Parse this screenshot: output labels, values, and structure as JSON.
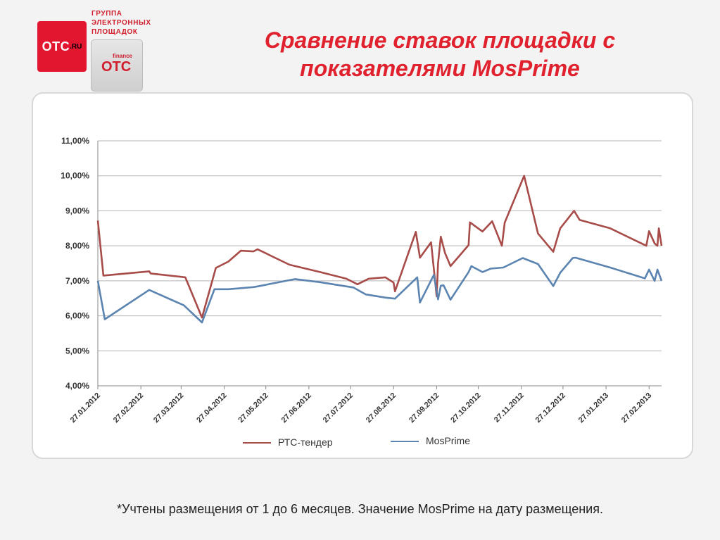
{
  "logo": {
    "brand": "OTC",
    "brand_suffix": ".RU",
    "group_lines": [
      "ГРУППА",
      "ЭЛЕКТРОННЫХ",
      "ПЛОЩАДОК"
    ],
    "finance_label": "finance",
    "finance_brand": "OTC"
  },
  "title": "Сравнение ставок площадки с показателями MosPrime",
  "footnote": "*Учтены размещения от 1 до 6 месяцев. Значение MosPrime на дату размещения.",
  "colors": {
    "accent": "#e0212e",
    "series_rts": "#a84c4a",
    "series_mosprime": "#5b84b1"
  },
  "chart_data": {
    "type": "line",
    "x_ticks": [
      "27.01.2012",
      "27.02.2012",
      "27.03.2012",
      "27.04.2012",
      "27.05.2012",
      "27.06.2012",
      "27.07.2012",
      "27.08.2012",
      "27.09.2012",
      "27.10.2012",
      "27.11.2012",
      "27.12.2012",
      "27.01.2013",
      "27.02.2013"
    ],
    "y_ticks": [
      "4,00%",
      "5,00%",
      "6,00%",
      "7,00%",
      "8,00%",
      "9,00%",
      "10,00%",
      "11,00%"
    ],
    "ylim": [
      4,
      11
    ],
    "y_grid": true,
    "legend_position": "bottom",
    "series": [
      {
        "name": "РТС-тендер",
        "color": "#a84c4a",
        "points": [
          [
            "2012-01-27",
            8.72
          ],
          [
            "2012-01-31",
            7.15
          ],
          [
            "2012-03-04",
            7.27
          ],
          [
            "2012-03-05",
            7.21
          ],
          [
            "2012-03-30",
            7.1
          ],
          [
            "2012-04-11",
            5.95
          ],
          [
            "2012-04-21",
            7.37
          ],
          [
            "2012-04-30",
            7.55
          ],
          [
            "2012-05-09",
            7.86
          ],
          [
            "2012-05-18",
            7.84
          ],
          [
            "2012-05-21",
            7.9
          ],
          [
            "2012-06-13",
            7.46
          ],
          [
            "2012-07-05",
            7.25
          ],
          [
            "2012-07-24",
            7.06
          ],
          [
            "2012-08-01",
            6.9
          ],
          [
            "2012-08-09",
            7.06
          ],
          [
            "2012-08-21",
            7.1
          ],
          [
            "2012-08-27",
            6.95
          ],
          [
            "2012-08-28",
            6.7
          ],
          [
            "2012-09-12",
            8.4
          ],
          [
            "2012-09-15",
            7.66
          ],
          [
            "2012-09-23",
            8.1
          ],
          [
            "2012-09-27",
            6.56
          ],
          [
            "2012-09-28",
            7.5
          ],
          [
            "2012-09-30",
            8.26
          ],
          [
            "2012-10-03",
            7.8
          ],
          [
            "2012-10-07",
            7.42
          ],
          [
            "2012-10-20",
            8.02
          ],
          [
            "2012-10-21",
            8.67
          ],
          [
            "2012-10-30",
            8.41
          ],
          [
            "2012-11-06",
            8.7
          ],
          [
            "2012-11-13",
            8.0
          ],
          [
            "2012-11-15",
            8.66
          ],
          [
            "2012-11-29",
            10.0
          ],
          [
            "2012-12-09",
            8.35
          ],
          [
            "2012-12-20",
            7.83
          ],
          [
            "2012-12-25",
            8.5
          ],
          [
            "2013-01-04",
            9.0
          ],
          [
            "2013-01-08",
            8.74
          ],
          [
            "2013-01-30",
            8.5
          ],
          [
            "2013-02-25",
            8.0
          ],
          [
            "2013-02-27",
            8.42
          ],
          [
            "2013-03-03",
            8.07
          ],
          [
            "2013-03-05",
            8.0
          ],
          [
            "2013-03-06",
            8.5
          ],
          [
            "2013-03-08",
            8.0
          ]
        ]
      },
      {
        "name": "MosPrime",
        "color": "#5b84b1",
        "points": [
          [
            "2012-01-27",
            7.0
          ],
          [
            "2012-02-01",
            5.9
          ],
          [
            "2012-03-04",
            6.74
          ],
          [
            "2012-03-29",
            6.3
          ],
          [
            "2012-04-11",
            5.81
          ],
          [
            "2012-04-20",
            6.76
          ],
          [
            "2012-04-30",
            6.76
          ],
          [
            "2012-05-18",
            6.82
          ],
          [
            "2012-05-21",
            6.84
          ],
          [
            "2012-06-17",
            7.05
          ],
          [
            "2012-07-05",
            6.96
          ],
          [
            "2012-07-29",
            6.81
          ],
          [
            "2012-08-07",
            6.61
          ],
          [
            "2012-08-21",
            6.52
          ],
          [
            "2012-08-28",
            6.49
          ],
          [
            "2012-09-13",
            7.1
          ],
          [
            "2012-09-15",
            6.38
          ],
          [
            "2012-09-25",
            7.17
          ],
          [
            "2012-09-28",
            6.47
          ],
          [
            "2012-09-30",
            6.86
          ],
          [
            "2012-10-02",
            6.87
          ],
          [
            "2012-10-07",
            6.46
          ],
          [
            "2012-10-20",
            7.25
          ],
          [
            "2012-10-22",
            7.42
          ],
          [
            "2012-10-30",
            7.25
          ],
          [
            "2012-11-05",
            7.35
          ],
          [
            "2012-11-14",
            7.38
          ],
          [
            "2012-11-28",
            7.65
          ],
          [
            "2012-12-09",
            7.48
          ],
          [
            "2012-12-20",
            6.85
          ],
          [
            "2012-12-25",
            7.23
          ],
          [
            "2013-01-03",
            7.65
          ],
          [
            "2013-01-05",
            7.66
          ],
          [
            "2013-01-30",
            7.38
          ],
          [
            "2013-02-24",
            7.07
          ],
          [
            "2013-02-27",
            7.32
          ],
          [
            "2013-03-03",
            7.0
          ],
          [
            "2013-03-05",
            7.32
          ],
          [
            "2013-03-08",
            7.0
          ]
        ]
      }
    ]
  }
}
